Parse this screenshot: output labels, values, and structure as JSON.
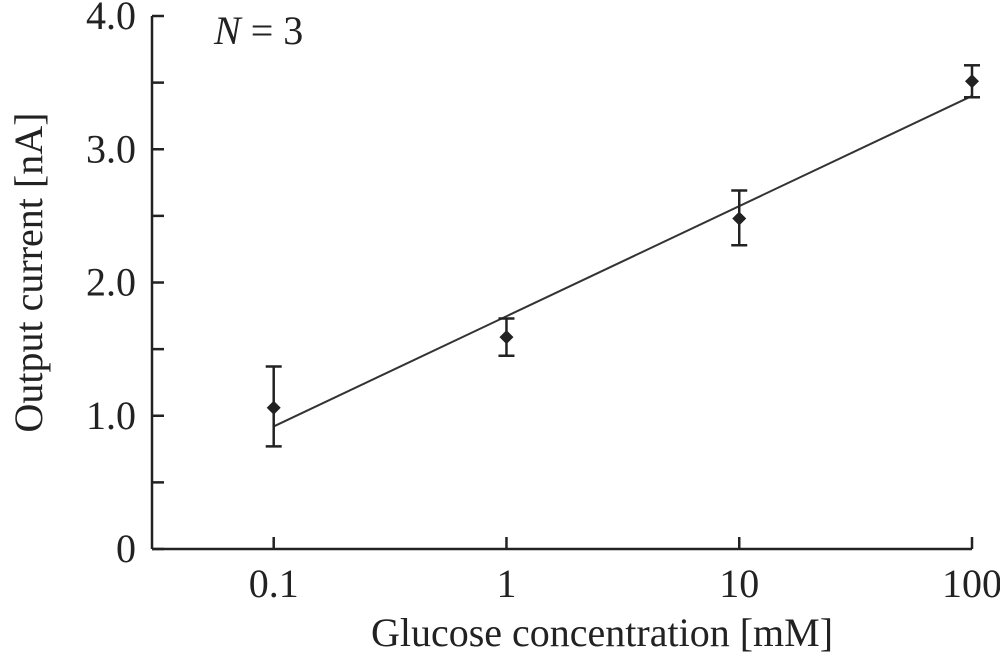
{
  "chart_data": {
    "type": "scatter",
    "title": "",
    "xlabel": "Glucose concentration [mM]",
    "ylabel": "Output current [nA]",
    "x_scale": "log",
    "xlim": [
      0.03,
      100
    ],
    "ylim": [
      0,
      4.0
    ],
    "x_ticks": [
      0.1,
      1,
      10,
      100
    ],
    "x_tick_labels": [
      "0.1",
      "1",
      "10",
      "100"
    ],
    "y_ticks": [
      0,
      1.0,
      2.0,
      3.0,
      4.0
    ],
    "y_tick_labels": [
      "0",
      "1.0",
      "2.0",
      "3.0",
      "4.0"
    ],
    "y_minor_ticks": [
      0.5,
      1.5,
      2.5,
      3.5
    ],
    "annotation": {
      "italic": "N",
      "rest": " = 3"
    },
    "series": [
      {
        "x": [
          0.1,
          1,
          10,
          100
        ],
        "y": [
          1.06,
          1.59,
          2.48,
          3.51
        ],
        "y_err_low": [
          0.77,
          1.45,
          2.28,
          3.39
        ],
        "y_err_high": [
          1.37,
          1.73,
          2.69,
          3.63
        ]
      }
    ],
    "fit_line": {
      "x": [
        0.1,
        100
      ],
      "y": [
        0.92,
        3.4
      ]
    },
    "grid": false,
    "legend": "none"
  }
}
